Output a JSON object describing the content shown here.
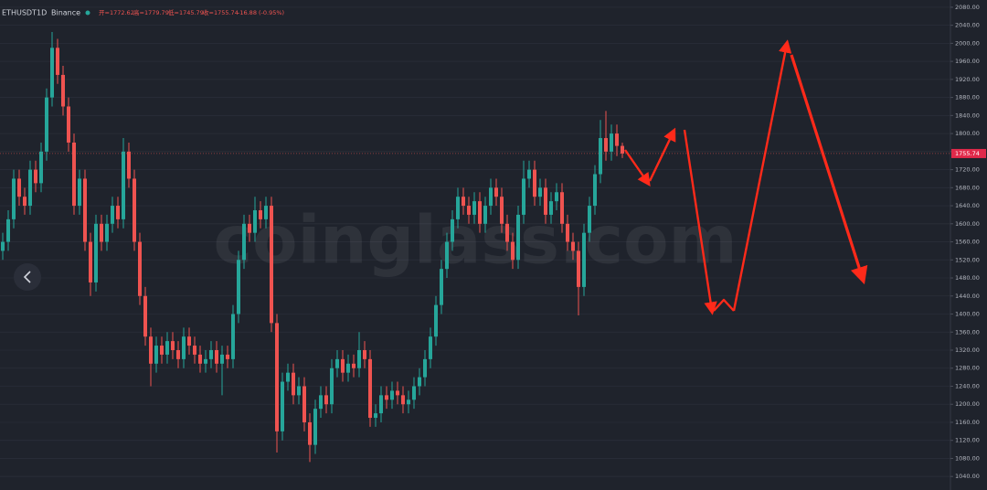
{
  "chart_data": {
    "type": "candlestick",
    "symbol": "ETHUSDT",
    "interval": "1D",
    "exchange": "Binance",
    "ohlc_legend": [
      "开=1772.62",
      "高=1779.79",
      "低=1745.79",
      "收=1755.74",
      "-16.88 (-0.95%)"
    ],
    "watermark": "coinglass.com",
    "up_color": "#26a69a",
    "down_color": "#ef5350",
    "grid": true,
    "ylim": [
      1010,
      2096
    ],
    "yticks": [
      {
        "value": 1040,
        "label": "1040.00"
      },
      {
        "value": 1080,
        "label": "1080.00"
      },
      {
        "value": 1120,
        "label": "1120.00"
      },
      {
        "value": 1160,
        "label": "1160.00"
      },
      {
        "value": 1200,
        "label": "1200.00"
      },
      {
        "value": 1240,
        "label": "1240.00"
      },
      {
        "value": 1280,
        "label": "1280.00"
      },
      {
        "value": 1320,
        "label": "1320.00"
      },
      {
        "value": 1360,
        "label": "1360.00"
      },
      {
        "value": 1400,
        "label": "1400.00"
      },
      {
        "value": 1440,
        "label": "1440.00"
      },
      {
        "value": 1480,
        "label": "1480.00"
      },
      {
        "value": 1520,
        "label": "1520.00"
      },
      {
        "value": 1560,
        "label": "1560.00"
      },
      {
        "value": 1600,
        "label": "1600.00"
      },
      {
        "value": 1640,
        "label": "1640.00"
      },
      {
        "value": 1680,
        "label": "1680.00"
      },
      {
        "value": 1720,
        "label": "1720.00"
      },
      {
        "value": 1760,
        "label": "1760.00"
      },
      {
        "value": 1800,
        "label": "1800.00"
      },
      {
        "value": 1840,
        "label": "1840.00"
      },
      {
        "value": 1880,
        "label": "1880.00"
      },
      {
        "value": 1920,
        "label": "1920.00"
      },
      {
        "value": 1960,
        "label": "1960.00"
      },
      {
        "value": 2000,
        "label": "2000.00"
      },
      {
        "value": 2040,
        "label": "2040.00"
      },
      {
        "value": 2080,
        "label": "2080.00"
      }
    ],
    "open": [
      1540,
      1560,
      1610,
      1700,
      1660,
      1640,
      1720,
      1690,
      1760,
      1880,
      1990,
      1930,
      1860,
      1780,
      1640,
      1700,
      1560,
      1470,
      1600,
      1560,
      1600,
      1640,
      1610,
      1760,
      1700,
      1560,
      1440,
      1350,
      1290,
      1330,
      1310,
      1340,
      1320,
      1300,
      1350,
      1330,
      1310,
      1290,
      1300,
      1320,
      1290,
      1310,
      1300,
      1400,
      1520,
      1600,
      1580,
      1630,
      1610,
      1640,
      1380,
      1140,
      1250,
      1270,
      1220,
      1240,
      1160,
      1110,
      1190,
      1220,
      1200,
      1280,
      1300,
      1270,
      1290,
      1280,
      1320,
      1300,
      1170,
      1180,
      1220,
      1210,
      1230,
      1220,
      1200,
      1210,
      1240,
      1260,
      1300,
      1350,
      1420,
      1500,
      1560,
      1610,
      1660,
      1640,
      1620,
      1650,
      1600,
      1640,
      1680,
      1660,
      1600,
      1560,
      1520,
      1620,
      1700,
      1720,
      1660,
      1680,
      1620,
      1650,
      1670,
      1600,
      1560,
      1540,
      1460,
      1580,
      1640,
      1710,
      1790,
      1760,
      1800,
      1772.62
    ],
    "high": [
      1580,
      1630,
      1720,
      1720,
      1680,
      1740,
      1740,
      1780,
      1900,
      2025,
      2010,
      1950,
      1880,
      1800,
      1720,
      1720,
      1580,
      1620,
      1620,
      1620,
      1660,
      1660,
      1790,
      1780,
      1720,
      1580,
      1460,
      1370,
      1350,
      1350,
      1360,
      1360,
      1340,
      1370,
      1370,
      1350,
      1330,
      1320,
      1340,
      1340,
      1330,
      1330,
      1420,
      1540,
      1620,
      1620,
      1660,
      1650,
      1660,
      1660,
      1400,
      1270,
      1290,
      1290,
      1260,
      1260,
      1180,
      1210,
      1240,
      1240,
      1300,
      1320,
      1320,
      1310,
      1310,
      1360,
      1340,
      1320,
      1200,
      1240,
      1240,
      1250,
      1250,
      1240,
      1230,
      1260,
      1280,
      1320,
      1370,
      1440,
      1520,
      1580,
      1630,
      1680,
      1680,
      1660,
      1670,
      1670,
      1660,
      1700,
      1700,
      1680,
      1620,
      1580,
      1640,
      1740,
      1740,
      1740,
      1700,
      1700,
      1670,
      1690,
      1690,
      1620,
      1580,
      1560,
      1600,
      1660,
      1730,
      1830,
      1850,
      1820,
      1820,
      1779.79
    ],
    "low": [
      1520,
      1540,
      1590,
      1640,
      1620,
      1620,
      1670,
      1670,
      1740,
      1860,
      1910,
      1840,
      1760,
      1620,
      1620,
      1540,
      1440,
      1450,
      1540,
      1540,
      1580,
      1590,
      1590,
      1680,
      1540,
      1420,
      1330,
      1240,
      1270,
      1290,
      1290,
      1300,
      1280,
      1280,
      1310,
      1290,
      1270,
      1270,
      1280,
      1270,
      1220,
      1280,
      1280,
      1380,
      1500,
      1560,
      1560,
      1590,
      1590,
      1360,
      1093,
      1120,
      1230,
      1200,
      1200,
      1140,
      1072,
      1090,
      1170,
      1180,
      1180,
      1260,
      1250,
      1250,
      1260,
      1260,
      1280,
      1150,
      1150,
      1160,
      1190,
      1190,
      1200,
      1180,
      1180,
      1190,
      1220,
      1240,
      1280,
      1330,
      1400,
      1480,
      1540,
      1590,
      1620,
      1600,
      1600,
      1580,
      1580,
      1620,
      1640,
      1580,
      1540,
      1500,
      1500,
      1600,
      1680,
      1640,
      1640,
      1600,
      1600,
      1630,
      1580,
      1540,
      1520,
      1397,
      1440,
      1560,
      1620,
      1690,
      1740,
      1740,
      1750,
      1745.79
    ],
    "close": [
      1560,
      1610,
      1700,
      1660,
      1640,
      1720,
      1690,
      1760,
      1880,
      1990,
      1930,
      1860,
      1780,
      1640,
      1700,
      1560,
      1470,
      1600,
      1560,
      1600,
      1640,
      1610,
      1760,
      1700,
      1560,
      1440,
      1350,
      1290,
      1330,
      1310,
      1340,
      1320,
      1300,
      1350,
      1330,
      1310,
      1290,
      1300,
      1320,
      1290,
      1310,
      1300,
      1400,
      1520,
      1600,
      1580,
      1630,
      1610,
      1640,
      1380,
      1140,
      1250,
      1270,
      1220,
      1240,
      1160,
      1110,
      1190,
      1220,
      1200,
      1280,
      1300,
      1270,
      1290,
      1280,
      1320,
      1300,
      1170,
      1180,
      1220,
      1210,
      1230,
      1220,
      1200,
      1210,
      1240,
      1260,
      1300,
      1350,
      1420,
      1500,
      1560,
      1610,
      1660,
      1640,
      1620,
      1650,
      1600,
      1640,
      1680,
      1660,
      1600,
      1560,
      1520,
      1620,
      1700,
      1720,
      1660,
      1680,
      1620,
      1650,
      1670,
      1600,
      1560,
      1540,
      1460,
      1580,
      1640,
      1710,
      1790,
      1760,
      1800,
      1772.62,
      1755.74
    ]
  }
}
